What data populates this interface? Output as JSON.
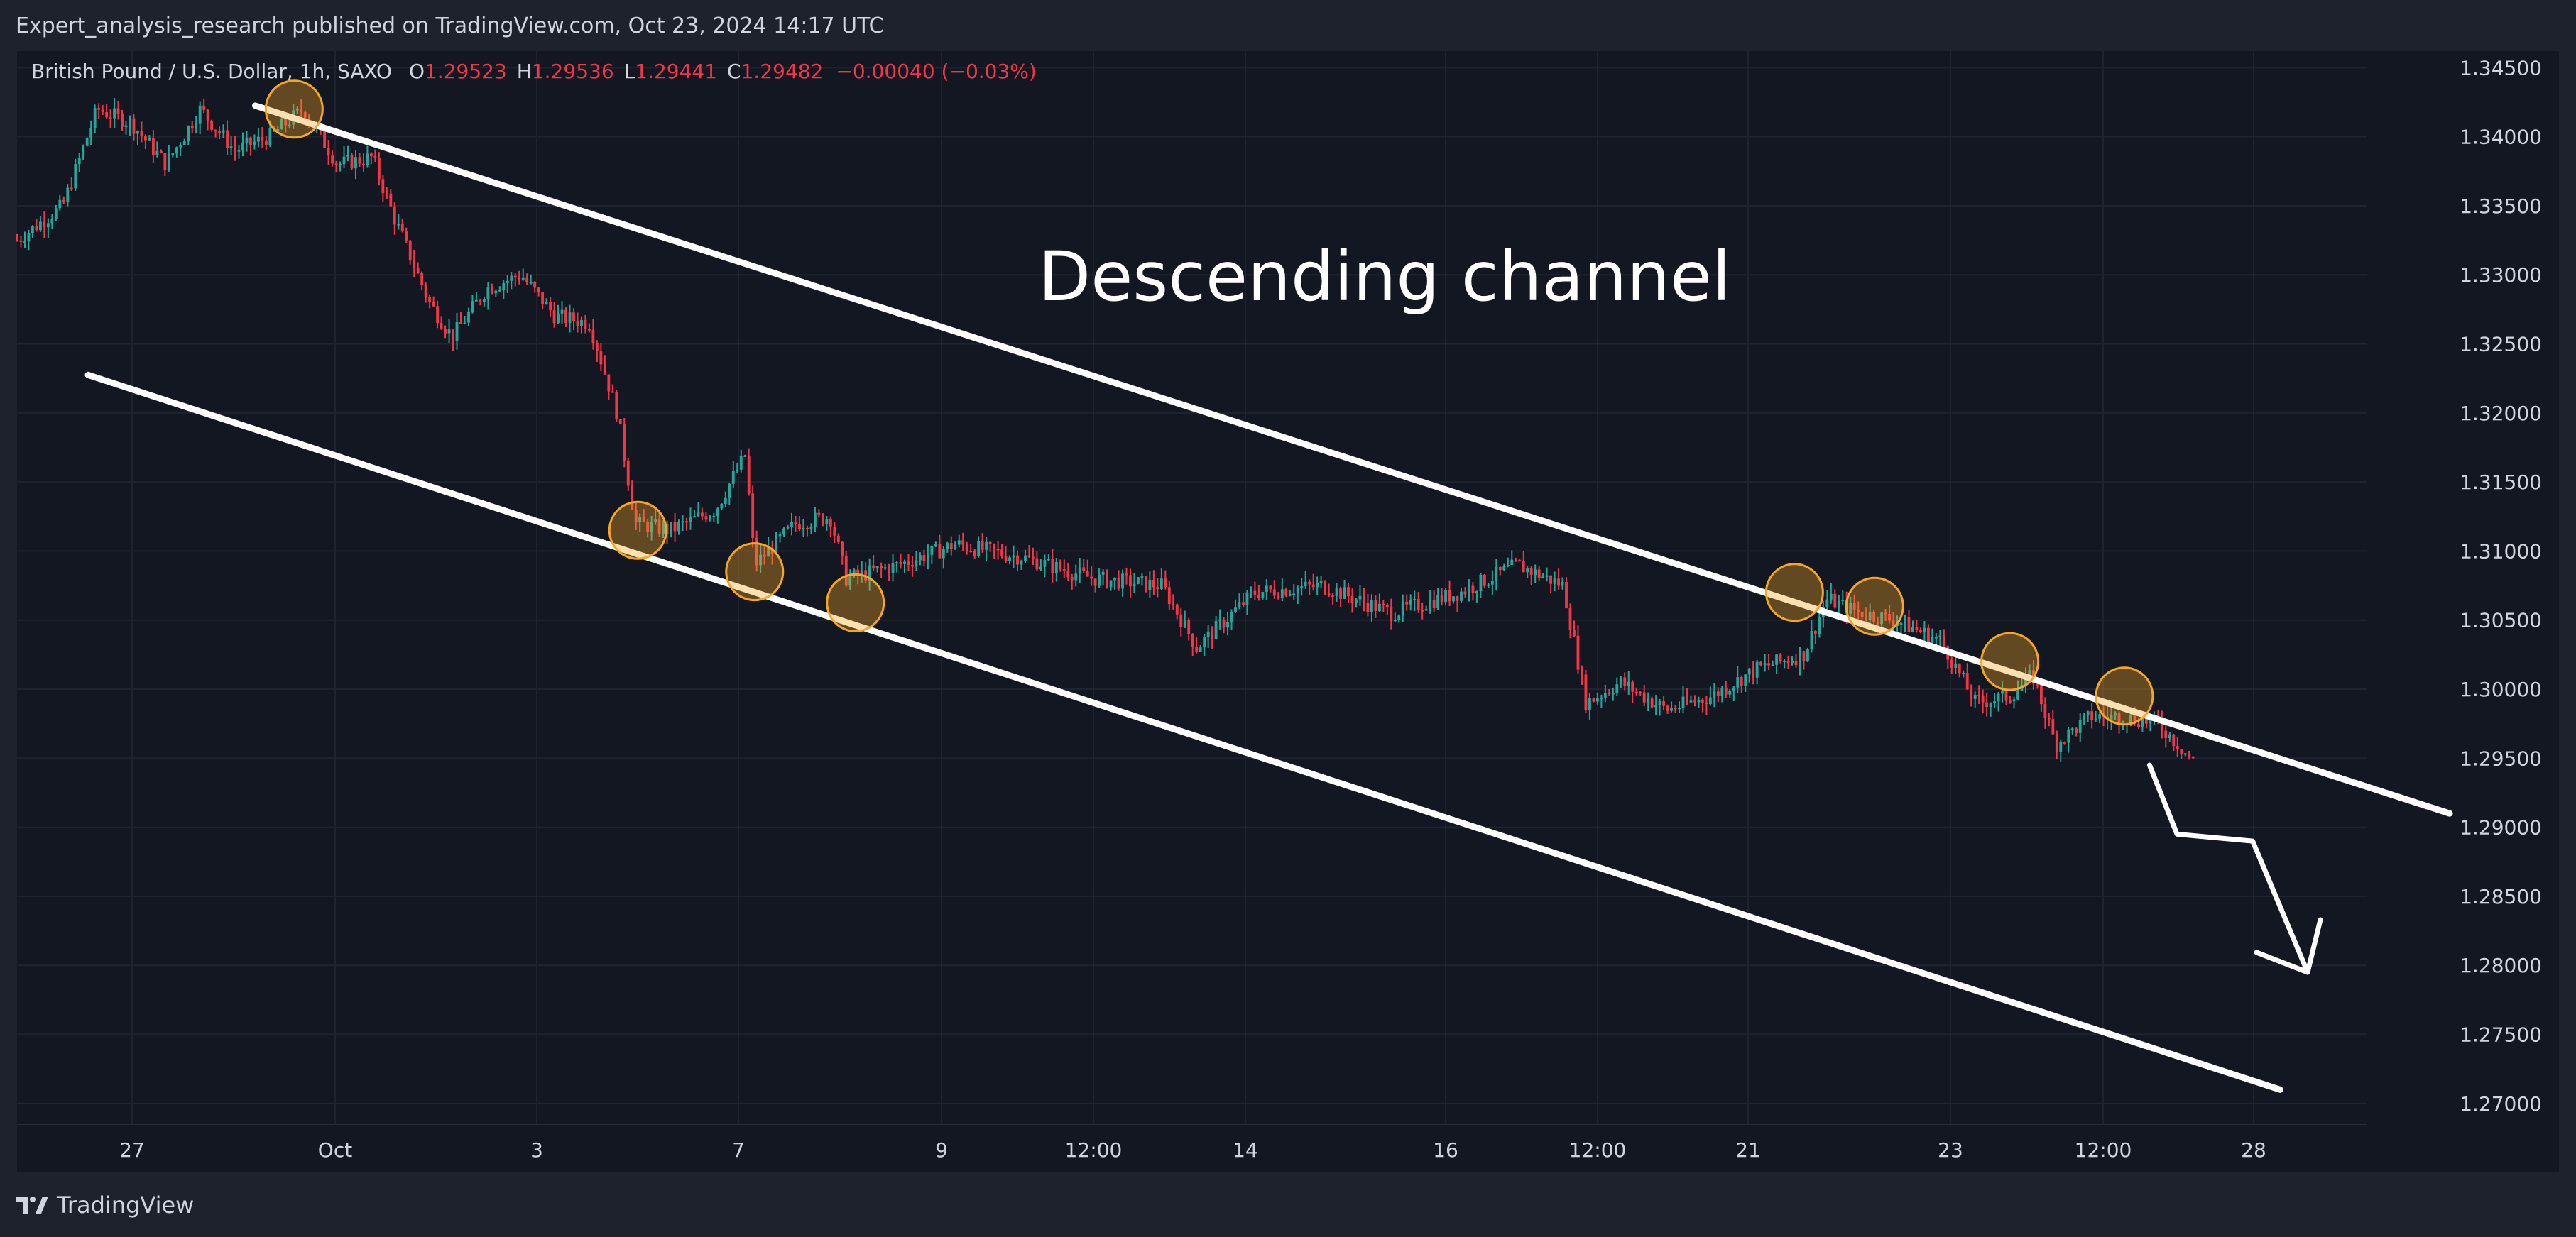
{
  "header": {
    "publisher": "Expert_analysis_research published on TradingView.com, Oct 23, 2024 14:17 UTC"
  },
  "legend": {
    "symbol": "British Pound / U.S. Dollar, 1h, SAXO",
    "open_label": "O",
    "open": "1.29523",
    "high_label": "H",
    "high": "1.29536",
    "low_label": "L",
    "low": "1.29441",
    "close_label": "C",
    "close": "1.29482",
    "change": "−0.00040 (−0.03%)"
  },
  "footer": {
    "brand": "TradingView"
  },
  "colors": {
    "up": "#26a69a",
    "down": "#f23645",
    "channel": "#ffffff",
    "touch": "#f5a623",
    "pane": "#131722"
  },
  "chart_data": {
    "type": "candlestick",
    "annotation": "Descending channel",
    "y_ticks": [
      "1.34500",
      "1.34000",
      "1.33500",
      "1.33000",
      "1.32500",
      "1.32000",
      "1.31500",
      "1.31000",
      "1.30500",
      "1.30000",
      "1.29500",
      "1.29000",
      "1.28500",
      "1.28000",
      "1.27500",
      "1.27000"
    ],
    "x_ticks": [
      "27",
      "Oct",
      "3",
      "7",
      "9",
      "12:00",
      "14",
      "16",
      "12:00",
      "21",
      "23",
      "12:00",
      "28"
    ],
    "ylim": [
      1.2685,
      1.3462
    ],
    "grid": true,
    "price_path": [
      [
        0.0,
        1.3325
      ],
      [
        0.02,
        1.335
      ],
      [
        0.035,
        1.342
      ],
      [
        0.05,
        1.341
      ],
      [
        0.065,
        1.338
      ],
      [
        0.08,
        1.342
      ],
      [
        0.095,
        1.339
      ],
      [
        0.11,
        1.34
      ],
      [
        0.125,
        1.342
      ],
      [
        0.14,
        1.338
      ],
      [
        0.155,
        1.3385
      ],
      [
        0.165,
        1.334
      ],
      [
        0.18,
        1.328
      ],
      [
        0.19,
        1.3255
      ],
      [
        0.205,
        1.329
      ],
      [
        0.22,
        1.33
      ],
      [
        0.235,
        1.327
      ],
      [
        0.25,
        1.3265
      ],
      [
        0.262,
        1.32
      ],
      [
        0.27,
        1.312
      ],
      [
        0.285,
        1.3115
      ],
      [
        0.305,
        1.313
      ],
      [
        0.318,
        1.317
      ],
      [
        0.322,
        1.309
      ],
      [
        0.34,
        1.312
      ],
      [
        0.355,
        1.3125
      ],
      [
        0.362,
        1.308
      ],
      [
        0.385,
        1.309
      ],
      [
        0.41,
        1.3105
      ],
      [
        0.44,
        1.3095
      ],
      [
        0.47,
        1.308
      ],
      [
        0.5,
        1.3075
      ],
      [
        0.515,
        1.303
      ],
      [
        0.54,
        1.307
      ],
      [
        0.57,
        1.3075
      ],
      [
        0.6,
        1.3055
      ],
      [
        0.63,
        1.307
      ],
      [
        0.655,
        1.309
      ],
      [
        0.675,
        1.3075
      ],
      [
        0.685,
        1.299
      ],
      [
        0.7,
        1.3005
      ],
      [
        0.72,
        1.2985
      ],
      [
        0.74,
        1.2995
      ],
      [
        0.76,
        1.3015
      ],
      [
        0.78,
        1.3025
      ],
      [
        0.79,
        1.3065
      ],
      [
        0.805,
        1.3055
      ],
      [
        0.82,
        1.305
      ],
      [
        0.84,
        1.3035
      ],
      [
        0.855,
        1.299
      ],
      [
        0.87,
        1.2995
      ],
      [
        0.88,
        1.301
      ],
      [
        0.89,
        1.296
      ],
      [
        0.905,
        1.298
      ],
      [
        0.92,
        1.298
      ],
      [
        0.935,
        1.2975
      ],
      [
        0.95,
        1.2948
      ]
    ],
    "channel_upper": {
      "from": [
        0.104,
        1.34225
      ],
      "to": [
        1.062,
        1.291
      ]
    },
    "channel_lower": {
      "from": [
        0.031,
        1.32275
      ],
      "to": [
        0.988,
        1.271
      ]
    },
    "touch_points": [
      [
        0.121,
        1.342
      ],
      [
        0.271,
        1.3115
      ],
      [
        0.322,
        1.3085
      ],
      [
        0.366,
        1.30625
      ],
      [
        0.776,
        1.307
      ],
      [
        0.811,
        1.306
      ],
      [
        0.87,
        1.302
      ],
      [
        0.92,
        1.2995
      ]
    ],
    "projection": [
      [
        0.931,
        1.2945
      ],
      [
        0.943,
        1.2895
      ],
      [
        0.976,
        1.289
      ],
      [
        1.0,
        1.2795
      ]
    ]
  }
}
